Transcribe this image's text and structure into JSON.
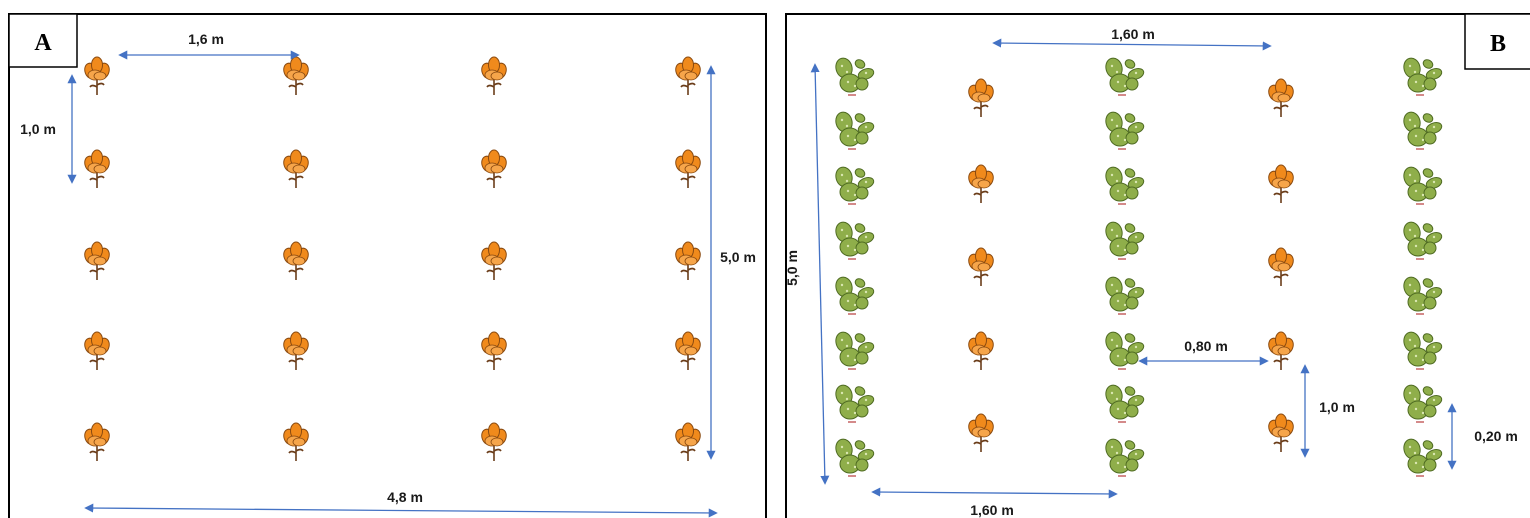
{
  "figure": {
    "panels": [
      {
        "id": "A",
        "label": "A",
        "plant": "flower-icon",
        "dimensions": {
          "horizontal_spacing": "1,6 m",
          "vertical_spacing": "1,0 m",
          "column_length": "5,0 m",
          "total_width": "4,8 m"
        }
      },
      {
        "id": "B",
        "label": "B",
        "plants": [
          "cactus-icon",
          "flower-icon"
        ],
        "dimensions": {
          "top_spacing": "1,60 m",
          "column_length": "5,0 m",
          "row_offset": "0,80 m",
          "vertical_spacing": "1,0 m",
          "cactus_spacing": "0,20 m",
          "bottom_spacing": "1,60 m"
        }
      }
    ],
    "colors": {
      "arrow": "#4472c4",
      "flower": "#f08a1c",
      "cactus": "#8fae4a"
    }
  }
}
